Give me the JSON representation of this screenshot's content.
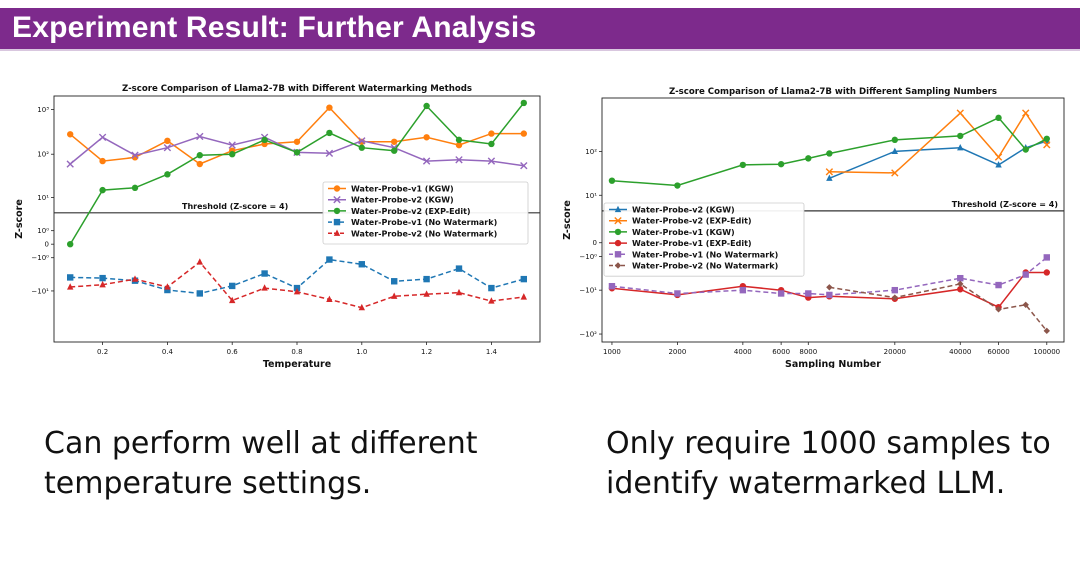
{
  "slide": {
    "title": "Experiment Result: Further Analysis",
    "caption_left": "Can perform well at different temperature settings.",
    "caption_right": "Only require 1000 samples to identify watermarked LLM.",
    "accent": "#7d2a8c"
  },
  "chart_data": [
    {
      "type": "line",
      "title": "Z-score Comparison of Llama2-7B with Different Watermarking Methods",
      "xlabel": "Temperature",
      "ylabel": "Z-score",
      "yscale": "symlog",
      "xlim": [
        0.05,
        1.55
      ],
      "ylim": [
        -150,
        2000
      ],
      "xticks": [
        0.2,
        0.4,
        0.6,
        0.8,
        1.0,
        1.2,
        1.4
      ],
      "xtick_labels": [
        "0.2",
        "0.4",
        "0.6",
        "0.8",
        "1.0",
        "1.2",
        "1.4"
      ],
      "yticks": [
        1000,
        100,
        10,
        1,
        0,
        -1,
        -10
      ],
      "ytick_labels": [
        "10³",
        "10²",
        "10¹",
        "10⁰",
        "0",
        "−10⁰",
        "−10¹"
      ],
      "threshold": {
        "value": 4,
        "label": "Threshold (Z-score = 4)"
      },
      "legend_position": "center-right",
      "x": [
        0.1,
        0.2,
        0.3,
        0.4,
        0.5,
        0.6,
        0.7,
        0.8,
        0.9,
        1.0,
        1.1,
        1.2,
        1.3,
        1.4,
        1.5
      ],
      "series": [
        {
          "name": "Water-Probe-v1 (KGW)",
          "color": "#ff7f0e",
          "marker": "circle",
          "dash": false,
          "values": [
            280,
            70,
            85,
            200,
            60,
            120,
            170,
            190,
            1100,
            190,
            190,
            240,
            160,
            290,
            290
          ]
        },
        {
          "name": "Water-Probe-v2 (KGW)",
          "color": "#9467bd",
          "marker": "x",
          "dash": false,
          "values": [
            60,
            240,
            95,
            140,
            250,
            160,
            240,
            110,
            105,
            200,
            140,
            70,
            75,
            70,
            55
          ]
        },
        {
          "name": "Water-Probe-v2 (EXP-Edit)",
          "color": "#2ca02c",
          "marker": "circle",
          "dash": false,
          "values": [
            0,
            15,
            17,
            35,
            95,
            100,
            210,
            110,
            300,
            140,
            120,
            1200,
            210,
            170,
            1400
          ]
        },
        {
          "name": "Water-Probe-v1 (No Watermark)",
          "color": "#1f77b4",
          "marker": "square",
          "dash": true,
          "values": [
            -4.5,
            -4.7,
            -5.5,
            -9.5,
            -11.5,
            -7.5,
            -3.5,
            -8.5,
            -1.2,
            -1.8,
            -5.7,
            -5.0,
            -2.5,
            -8.5,
            -5.0
          ]
        },
        {
          "name": "Water-Probe-v2 (No Watermark)",
          "color": "#d62728",
          "marker": "triangle",
          "dash": true,
          "values": [
            -8.0,
            -7.0,
            -5.0,
            -8.0,
            -1.5,
            -17.0,
            -8.5,
            -10.5,
            -16.0,
            -25.0,
            -13.5,
            -12.0,
            -11.0,
            -17.5,
            -14.0
          ]
        }
      ]
    },
    {
      "type": "line",
      "title": "Z-score Comparison of Llama2-7B with Different Sampling Numbers",
      "xlabel": "Sampling Number",
      "ylabel": "Z-score",
      "xscale": "log",
      "yscale": "symlog",
      "xlim": [
        900,
        120000
      ],
      "ylim": [
        -150,
        1500
      ],
      "xticks": [
        1000,
        2000,
        4000,
        6000,
        8000,
        20000,
        40000,
        60000,
        100000
      ],
      "xtick_labels": [
        "1000",
        "2000",
        "4000",
        "6000",
        "8000",
        "20000",
        "40000",
        "60000",
        "100000"
      ],
      "yticks": [
        100,
        10,
        0,
        -1,
        -10,
        -100
      ],
      "ytick_labels": [
        "10²",
        "10¹",
        "0",
        "−10⁰",
        "−10¹",
        "−10²"
      ],
      "threshold": {
        "value": 4,
        "label": "Threshold (Z-score = 4)"
      },
      "legend_position": "center-left",
      "series": [
        {
          "name": "Water-Probe-v2 (KGW)",
          "color": "#1f77b4",
          "marker": "triangle",
          "dash": false,
          "x": [
            10000,
            20000,
            40000,
            60000,
            80000,
            100000
          ],
          "values": [
            25,
            100,
            120,
            50,
            120,
            170
          ]
        },
        {
          "name": "Water-Probe-v2 (EXP-Edit)",
          "color": "#ff7f0e",
          "marker": "x",
          "dash": false,
          "x": [
            10000,
            20000,
            40000,
            60000,
            80000,
            100000
          ],
          "values": [
            35,
            33,
            700,
            75,
            700,
            140
          ]
        },
        {
          "name": "Water-Probe-v1 (KGW)",
          "color": "#2ca02c",
          "marker": "circle",
          "dash": false,
          "x": [
            1000,
            2000,
            4000,
            6000,
            8000,
            10000,
            20000,
            40000,
            60000,
            80000,
            100000
          ],
          "values": [
            22,
            17,
            50,
            52,
            70,
            90,
            180,
            220,
            550,
            110,
            190
          ]
        },
        {
          "name": "Water-Probe-v1 (EXP-Edit)",
          "color": "#d62728",
          "marker": "circle",
          "dash": false,
          "x": [
            1000,
            2000,
            4000,
            6000,
            8000,
            10000,
            20000,
            40000,
            60000,
            80000,
            100000
          ],
          "values": [
            -9,
            -13,
            -8,
            -10,
            -15,
            -14,
            -16,
            -9.5,
            -25,
            -3.5,
            -3.5
          ]
        },
        {
          "name": "Water-Probe-v1 (No Watermark)",
          "color": "#9467bd",
          "marker": "square",
          "dash": true,
          "x": [
            1000,
            2000,
            4000,
            6000,
            8000,
            10000,
            20000,
            40000,
            60000,
            80000,
            100000
          ],
          "values": [
            -8,
            -12,
            -10,
            -12,
            -12,
            -13,
            -10,
            -5,
            -7.5,
            -4,
            -1.1
          ]
        },
        {
          "name": "Water-Probe-v2 (No Watermark)",
          "color": "#8c564b",
          "marker": "diamond",
          "dash": true,
          "x": [
            10000,
            20000,
            40000,
            60000,
            80000,
            100000
          ],
          "values": [
            -8.5,
            -15,
            -7,
            -28,
            -22,
            -85
          ]
        }
      ]
    }
  ]
}
